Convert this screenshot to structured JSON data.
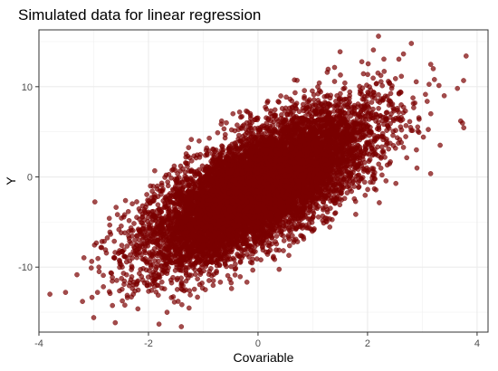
{
  "chart_data": {
    "type": "scatter",
    "title": "Simulated data for linear regression",
    "xlabel": "Covariable",
    "ylabel": "Y",
    "xlim": [
      -4.0,
      4.2
    ],
    "ylim": [
      -17.2,
      16.3
    ],
    "x_ticks": [
      -4,
      -2,
      0,
      2,
      4
    ],
    "y_ticks": [
      -10,
      0,
      10
    ],
    "grid": true,
    "legend": "none",
    "n_points": 10000,
    "point_color": "#7A0000",
    "point_alpha": 0.7,
    "relationship": {
      "intercept": -1.2,
      "slope": 3.0,
      "x_mean": 0.0,
      "x_sd": 1.0,
      "residual_sd": 3.0
    },
    "outliers": [
      {
        "x": -3.8,
        "y": -13.0
      },
      {
        "x": 3.8,
        "y": 13.4
      },
      {
        "x": 2.2,
        "y": 15.6
      },
      {
        "x": 2.8,
        "y": 14.8
      },
      {
        "x": 3.7,
        "y": 6.2
      },
      {
        "x": -1.4,
        "y": -16.6
      },
      {
        "x": -3.0,
        "y": -15.6
      },
      {
        "x": -2.9,
        "y": -10.5
      },
      {
        "x": 3.4,
        "y": 9.0
      },
      {
        "x": 3.2,
        "y": 12.0
      }
    ]
  }
}
